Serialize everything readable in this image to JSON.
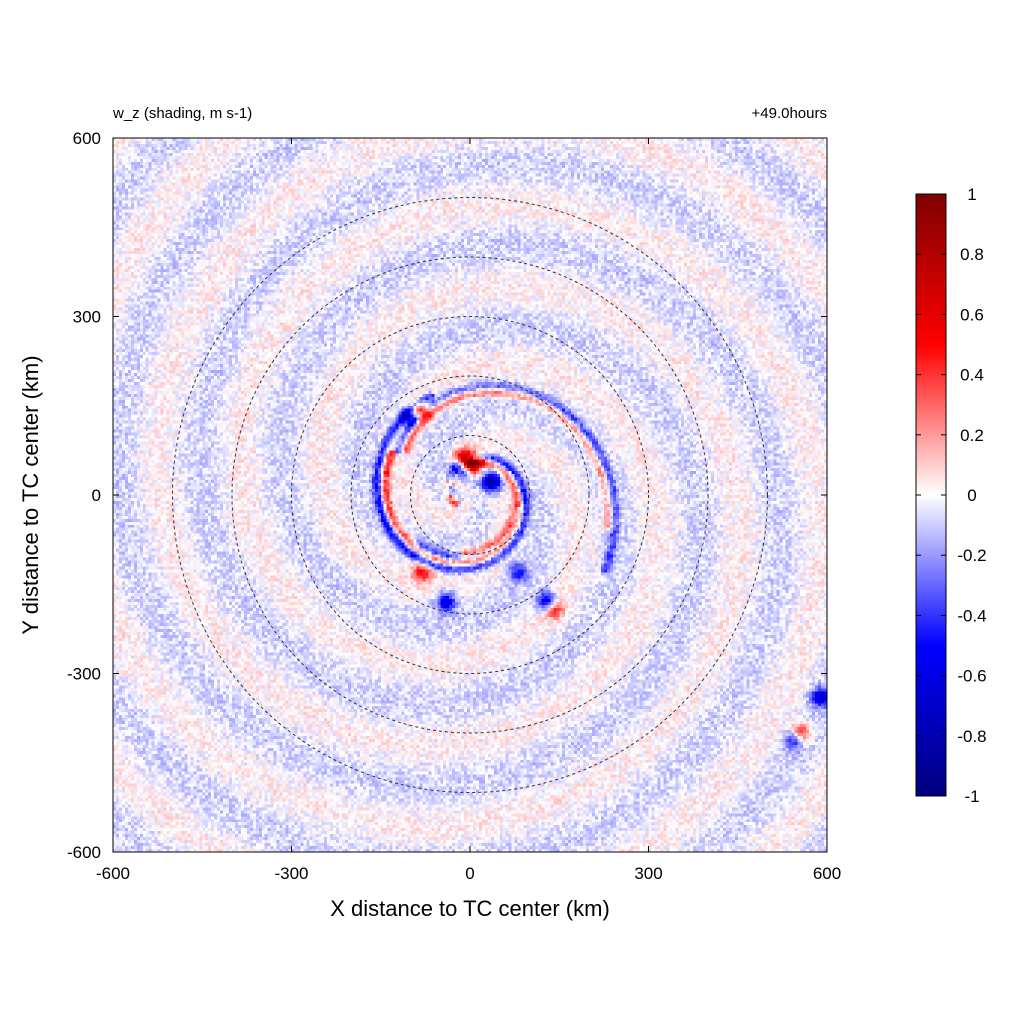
{
  "chart_data": {
    "type": "heatmap",
    "title_left": "w_z (shading, m s-1)",
    "title_right": "+49.0hours",
    "xlabel": "X distance to TC center (km)",
    "ylabel": "Y distance to TC center (km)",
    "xlim": [
      -600,
      600
    ],
    "ylim": [
      -600,
      600
    ],
    "xticks": [
      "-600",
      "-300",
      "0",
      "300",
      "600"
    ],
    "yticks": [
      "600",
      "300",
      "0",
      "-300",
      "-600"
    ],
    "xtick_values": [
      -600,
      -300,
      0,
      300,
      600
    ],
    "ytick_values": [
      600,
      300,
      0,
      -300,
      -600
    ],
    "range_rings_km": [
      100,
      200,
      300,
      400,
      500
    ],
    "colorbar": {
      "range": [
        -1,
        1
      ],
      "tick_labels": [
        "1",
        "0.8",
        "0.6",
        "0.4",
        "0.2",
        "0",
        "-0.2",
        "-0.4",
        "-0.6",
        "-0.8",
        "-1"
      ],
      "tick_values": [
        1,
        0.8,
        0.6,
        0.4,
        0.2,
        0,
        -0.2,
        -0.4,
        -0.6,
        -0.8,
        -1
      ],
      "colors": [
        "#00007f",
        "#0000ff",
        "#ffffff",
        "#ff0000",
        "#7f0000"
      ]
    },
    "features": [
      {
        "x": -10,
        "y": 60,
        "value": 0.9
      },
      {
        "x": -15,
        "y": 45,
        "value": -0.9
      },
      {
        "x": 5,
        "y": 50,
        "value": 0.8
      },
      {
        "x": 35,
        "y": 20,
        "value": -0.8
      },
      {
        "x": -85,
        "y": 140,
        "value": 0.7
      },
      {
        "x": -100,
        "y": 130,
        "value": -0.6
      },
      {
        "x": 130,
        "y": -180,
        "value": -0.8
      },
      {
        "x": 140,
        "y": -190,
        "value": 0.6
      },
      {
        "x": -40,
        "y": -180,
        "value": -0.6
      },
      {
        "x": 555,
        "y": -400,
        "value": 0.6
      },
      {
        "x": 545,
        "y": -410,
        "value": -0.5
      },
      {
        "x": 590,
        "y": -340,
        "value": -0.6
      },
      {
        "x": -80,
        "y": -130,
        "value": 0.5
      },
      {
        "x": 80,
        "y": -130,
        "value": -0.4
      }
    ],
    "spiral_bands": [
      {
        "r_start": 180,
        "r_end": 40,
        "turns": 1.1,
        "phase_deg": 110,
        "value": -0.5
      },
      {
        "r_start": 150,
        "r_end": 35,
        "turns": 1.0,
        "phase_deg": 150,
        "value": 0.5
      },
      {
        "r_start": 120,
        "r_end": 30,
        "turns": 0.9,
        "phase_deg": 220,
        "value": -0.45
      },
      {
        "r_start": 100,
        "r_end": 25,
        "turns": 0.9,
        "phase_deg": 260,
        "value": 0.45
      },
      {
        "r_start": 260,
        "r_end": 140,
        "turns": 0.5,
        "phase_deg": 330,
        "value": -0.35
      },
      {
        "r_start": 240,
        "r_end": 130,
        "turns": 0.45,
        "phase_deg": 345,
        "value": 0.35
      }
    ]
  }
}
